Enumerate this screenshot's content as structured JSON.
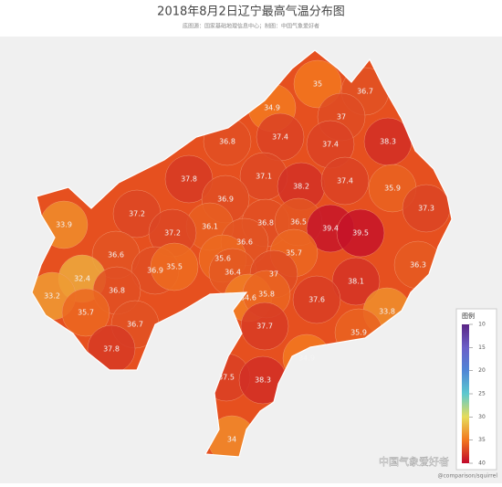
{
  "title": "2018年8月2日辽宁最高气温分布图",
  "subtitle": "底图源：国家基础地理信息中心；制图：中国气象爱好者",
  "labels": [
    35,
    36.7,
    34.9,
    37,
    36.8,
    37.4,
    37.4,
    38.3,
    37.8,
    37.1,
    38.2,
    37.4,
    35.9,
    37.3,
    37.2,
    36.9,
    33.9,
    36.1,
    36.8,
    36.5,
    39.4,
    39.5,
    37.2,
    36.6,
    35.6,
    35.7,
    36.6,
    36.9,
    35.5,
    36.4,
    37,
    36.3,
    32.4,
    33.2,
    36.8,
    34.6,
    35.8,
    38.1,
    37.6,
    35.7,
    33.8,
    36.7,
    37.7,
    35.9,
    37.8,
    34.9,
    37.5,
    38.3,
    34
  ],
  "legend": {
    "title": "图例",
    "ticks": [
      10,
      15,
      20,
      25,
      30,
      35,
      40
    ],
    "colors": [
      "#5a2585",
      "#6b5fc8",
      "#4f86d6",
      "#5cc9cf",
      "#e6dc5a",
      "#f2771f",
      "#c0082a"
    ]
  },
  "watermark": "中国气象爱好者",
  "credit": "@comparison/squirrel"
}
